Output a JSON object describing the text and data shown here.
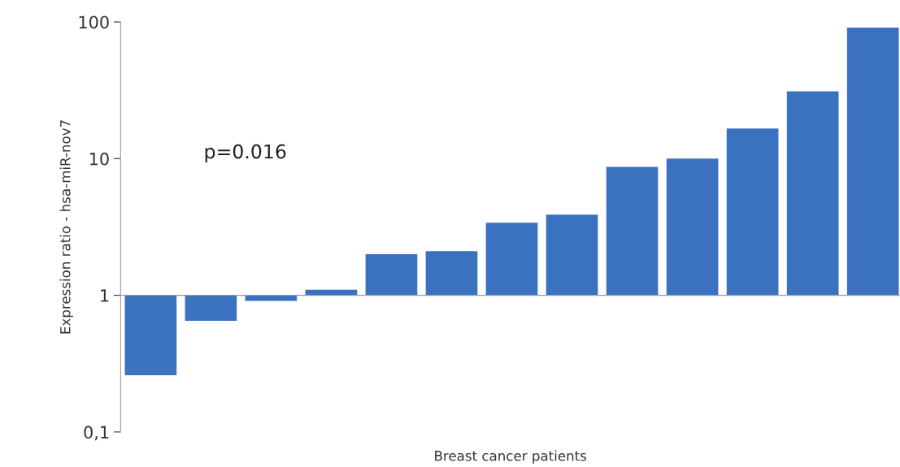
{
  "chart_data": {
    "type": "bar",
    "xlabel": "Breast cancer patients",
    "ylabel": "Expression ratio - hsa-miR-nov7",
    "categories": [
      null,
      null,
      null,
      null,
      null,
      null,
      null,
      null,
      null,
      null,
      null,
      null,
      null
    ],
    "base": [
      1,
      1,
      1,
      1,
      1,
      1,
      1,
      1,
      1,
      1,
      1,
      1,
      1
    ],
    "values": [
      -0.74,
      -0.35,
      -0.09,
      0.1,
      1.0,
      1.1,
      2.4,
      2.9,
      7.7,
      9,
      15.6,
      30,
      90
    ],
    "color": "#3a72c0",
    "log": "y",
    "ylim": [
      0.1,
      100
    ],
    "yticks": [
      {
        "value": 0.1,
        "label": "0,1"
      },
      1,
      10,
      100
    ],
    "ref_lines": [
      {
        "axis": "y",
        "value": 1,
        "color": "#999999"
      }
    ],
    "tick_labels": "y",
    "annotations": [
      "p=0.016"
    ]
  }
}
